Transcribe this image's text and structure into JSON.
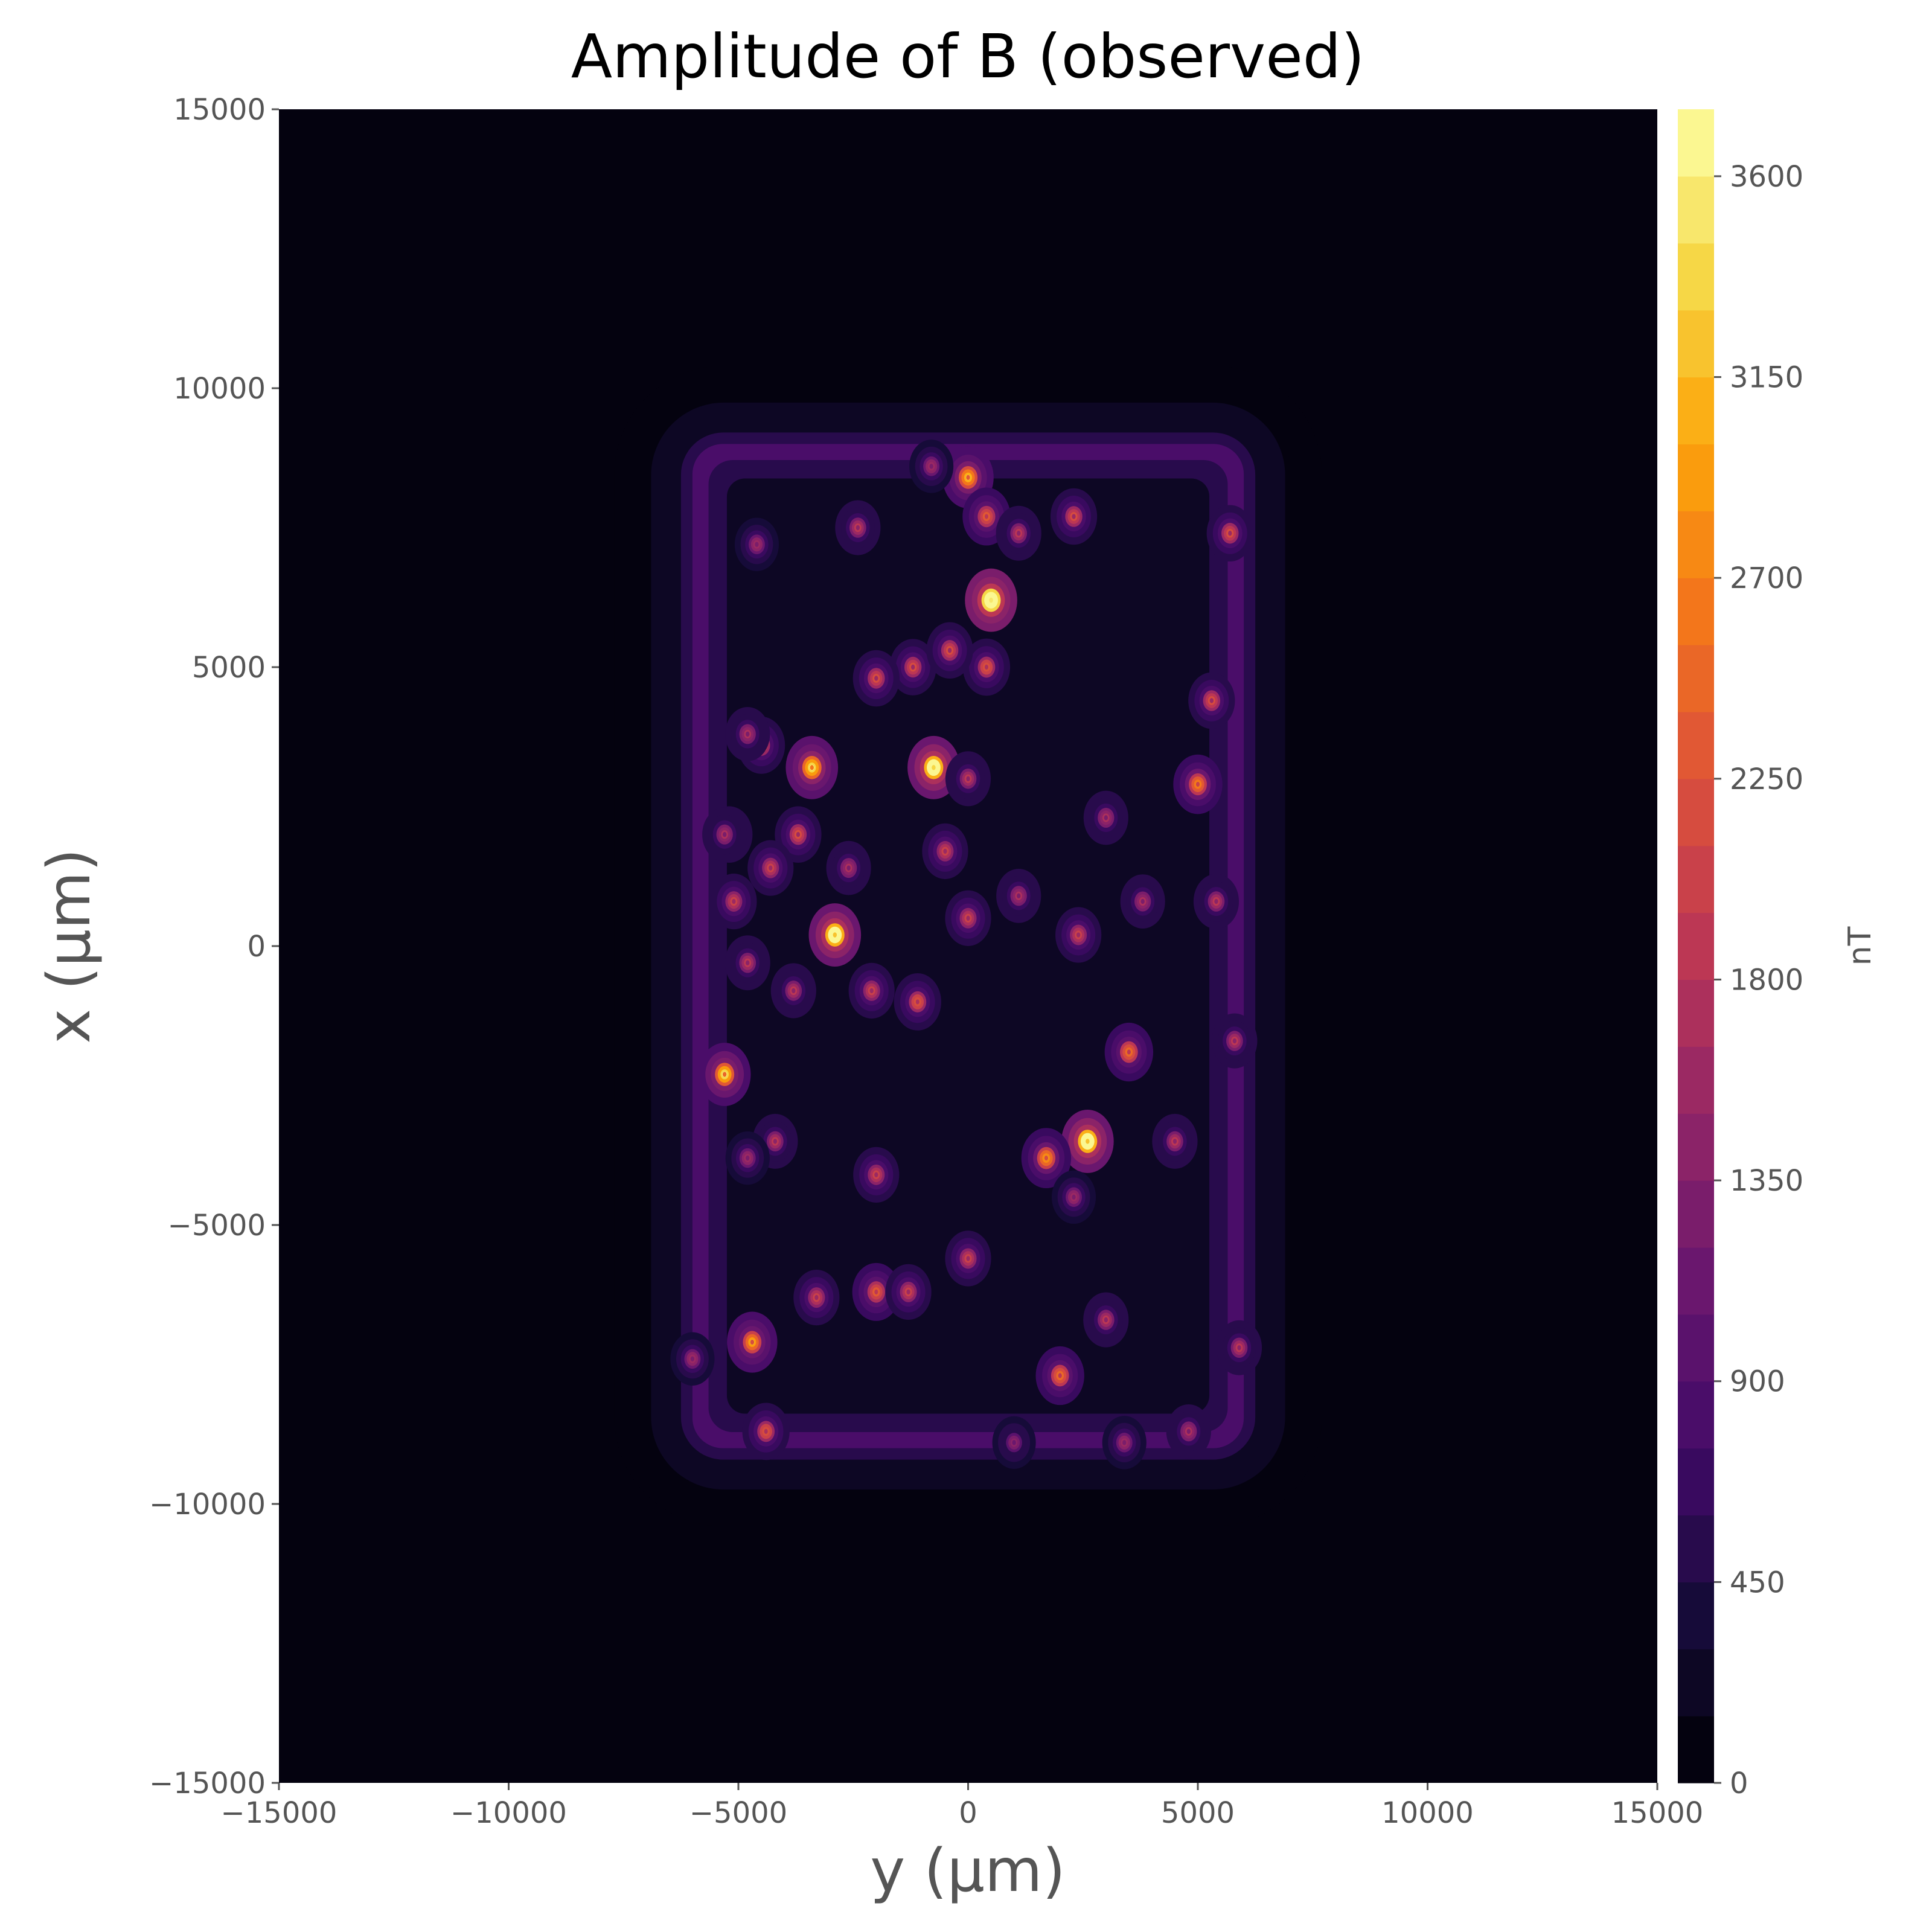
{
  "chart_data": {
    "type": "heatmap",
    "subtype": "filled-contour",
    "title": "Amplitude of B (observed)",
    "xlabel": "y (μm)",
    "ylabel": "x (μm)",
    "colorbar_label": "nT",
    "colormap": "inferno",
    "x_range": [
      -15000,
      15000
    ],
    "y_range": [
      -15000,
      15000
    ],
    "x_ticks": [
      "−15000",
      "−10000",
      "−5000",
      "0",
      "5000",
      "10000",
      "15000"
    ],
    "y_ticks": [
      "15000",
      "10000",
      "5000",
      "0",
      "−5000",
      "−10000",
      "−15000"
    ],
    "colorbar_range": [
      0,
      3750
    ],
    "colorbar_ticks": [
      "0",
      "450",
      "900",
      "1350",
      "1800",
      "2250",
      "2700",
      "3150",
      "3600"
    ],
    "colorbar_levels": 25,
    "background_level_nT": 40,
    "rectangle_region": {
      "y_range": [
        -6000,
        6000
      ],
      "x_range": [
        -9000,
        9000
      ],
      "edge_level_nT": 850,
      "interior_level_nT": 200,
      "halo_level_nT": 230
    },
    "hotspots": [
      {
        "y": 500,
        "x": 6200,
        "value": 3500
      },
      {
        "y": -750,
        "x": 3200,
        "value": 3300
      },
      {
        "y": -2900,
        "x": 200,
        "value": 3200
      },
      {
        "y": 2600,
        "x": -3500,
        "value": 3200
      },
      {
        "y": -3400,
        "x": 3200,
        "value": 2600
      },
      {
        "y": -5300,
        "x": -2300,
        "value": 2500
      },
      {
        "y": 0,
        "x": 8400,
        "value": 2300
      },
      {
        "y": -4700,
        "x": -7100,
        "value": 2200
      },
      {
        "y": 1700,
        "x": -3800,
        "value": 2100
      },
      {
        "y": 5000,
        "x": 2900,
        "value": 2000
      },
      {
        "y": 3500,
        "x": -1900,
        "value": 1900
      },
      {
        "y": 2000,
        "x": -7700,
        "value": 1900
      },
      {
        "y": 400,
        "x": 7700,
        "value": 1800
      },
      {
        "y": -2000,
        "x": -6200,
        "value": 1800
      },
      {
        "y": 400,
        "x": 5000,
        "value": 1700
      },
      {
        "y": -1100,
        "x": -1000,
        "value": 1700
      },
      {
        "y": -4400,
        "x": -8700,
        "value": 1700
      },
      {
        "y": -4500,
        "x": 3600,
        "value": 1700
      },
      {
        "y": -1200,
        "x": 5000,
        "value": 1600
      },
      {
        "y": -400,
        "x": 5300,
        "value": 1600
      },
      {
        "y": -2000,
        "x": 4800,
        "value": 1600
      },
      {
        "y": 2300,
        "x": 7700,
        "value": 1600
      },
      {
        "y": -3700,
        "x": 2000,
        "value": 1600
      },
      {
        "y": -5200,
        "x": 2000,
        "value": 1600
      },
      {
        "y": 5300,
        "x": 4400,
        "value": 1600
      },
      {
        "y": 5700,
        "x": 7400,
        "value": 1600
      },
      {
        "y": -4300,
        "x": 1400,
        "value": 1500
      },
      {
        "y": -5100,
        "x": 800,
        "value": 1500
      },
      {
        "y": -2100,
        "x": -800,
        "value": 1500
      },
      {
        "y": -2000,
        "x": -4100,
        "value": 1500
      },
      {
        "y": 0,
        "x": -5600,
        "value": 1500
      },
      {
        "y": -500,
        "x": 1700,
        "value": 1500
      },
      {
        "y": 0,
        "x": 500,
        "value": 1500
      },
      {
        "y": -3300,
        "x": -6300,
        "value": 1500
      },
      {
        "y": -1300,
        "x": -6200,
        "value": 1500
      },
      {
        "y": 2400,
        "x": 200,
        "value": 1500
      },
      {
        "y": -3800,
        "x": -800,
        "value": 1400
      },
      {
        "y": -4800,
        "x": -300,
        "value": 1400
      },
      {
        "y": 5400,
        "x": 800,
        "value": 1400
      },
      {
        "y": 5800,
        "x": -1700,
        "value": 1400
      },
      {
        "y": -4200,
        "x": -3500,
        "value": 1400
      },
      {
        "y": 4500,
        "x": -3500,
        "value": 1400
      },
      {
        "y": 1100,
        "x": 7400,
        "value": 1400
      },
      {
        "y": -2400,
        "x": 7500,
        "value": 1400
      },
      {
        "y": 0,
        "x": 3000,
        "value": 1400
      },
      {
        "y": 3000,
        "x": -6700,
        "value": 1400
      },
      {
        "y": 5900,
        "x": -7200,
        "value": 1400
      },
      {
        "y": -4800,
        "x": 3800,
        "value": 1300
      },
      {
        "y": -5300,
        "x": 2000,
        "value": 1300
      },
      {
        "y": -2600,
        "x": 1400,
        "value": 1300
      },
      {
        "y": 1100,
        "x": 900,
        "value": 1300
      },
      {
        "y": 3000,
        "x": 2300,
        "value": 1300
      },
      {
        "y": 3800,
        "x": 800,
        "value": 1300
      },
      {
        "y": 4800,
        "x": -8700,
        "value": 1300
      },
      {
        "y": 3400,
        "x": -8900,
        "value": 1200
      },
      {
        "y": -4800,
        "x": -3800,
        "value": 1200
      },
      {
        "y": -4600,
        "x": 7200,
        "value": 1200
      },
      {
        "y": -6000,
        "x": -7400,
        "value": 1200
      },
      {
        "y": -800,
        "x": 8600,
        "value": 1200
      },
      {
        "y": 2300,
        "x": -4500,
        "value": 1200
      },
      {
        "y": 1000,
        "x": -8900,
        "value": 1100
      }
    ]
  }
}
